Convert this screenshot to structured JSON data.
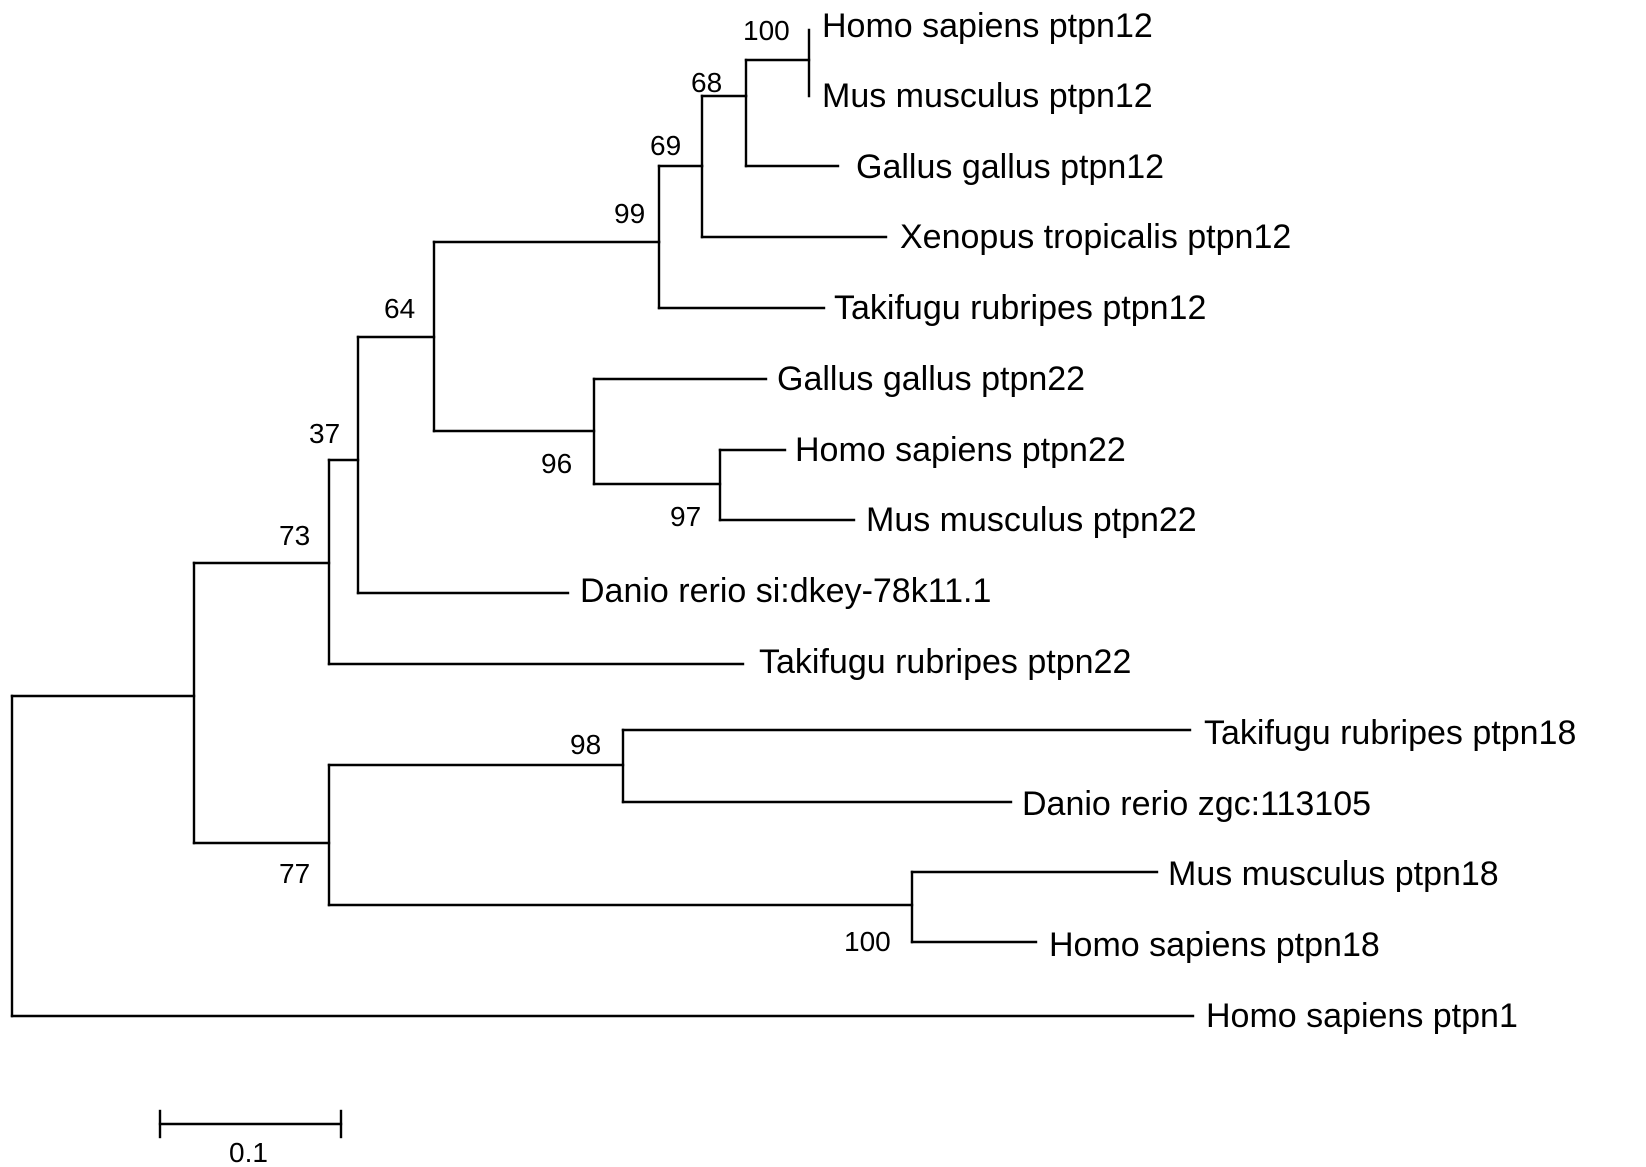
{
  "tree": {
    "taxa": [
      {
        "id": "hs12",
        "label": "Homo sapiens ptpn12"
      },
      {
        "id": "mm12",
        "label": "Mus musculus ptpn12"
      },
      {
        "id": "gg12",
        "label": "Gallus gallus ptpn12"
      },
      {
        "id": "xt12",
        "label": "Xenopus tropicalis ptpn12"
      },
      {
        "id": "tr12",
        "label": "Takifugu rubripes ptpn12"
      },
      {
        "id": "gg22",
        "label": "Gallus gallus ptpn22"
      },
      {
        "id": "hs22",
        "label": "Homo sapiens ptpn22"
      },
      {
        "id": "mm22",
        "label": "Mus musculus ptpn22"
      },
      {
        "id": "dr78",
        "label": "Danio rerio si:dkey-78k11.1"
      },
      {
        "id": "tr22",
        "label": "Takifugu rubripes ptpn22"
      },
      {
        "id": "tr18",
        "label": "Takifugu rubripes ptpn18"
      },
      {
        "id": "drzgc",
        "label": "Danio rerio zgc:113105"
      },
      {
        "id": "mm18",
        "label": "Mus musculus ptpn18"
      },
      {
        "id": "hs18",
        "label": "Homo sapiens ptpn18"
      },
      {
        "id": "hs1",
        "label": "Homo sapiens ptpn1"
      }
    ],
    "bootstrap": [
      {
        "node": "n_hs_mm_12",
        "value": "100"
      },
      {
        "node": "n_mam_gg_12",
        "value": "68"
      },
      {
        "node": "n_tetra_12",
        "value": "69"
      },
      {
        "node": "n_ptpn12",
        "value": "99"
      },
      {
        "node": "n_12_22",
        "value": "64"
      },
      {
        "node": "n_ptpn22",
        "value": "96"
      },
      {
        "node": "n_hs_mm_22",
        "value": "97"
      },
      {
        "node": "n_with_dr",
        "value": "37"
      },
      {
        "node": "n_with_tr22",
        "value": "73"
      },
      {
        "node": "n_tr18_dr",
        "value": "98"
      },
      {
        "node": "n_ptpn18",
        "value": "77"
      },
      {
        "node": "n_mm_hs_18",
        "value": "100"
      }
    ],
    "scale_bar": {
      "label": "0.1",
      "value": 0.1
    }
  }
}
